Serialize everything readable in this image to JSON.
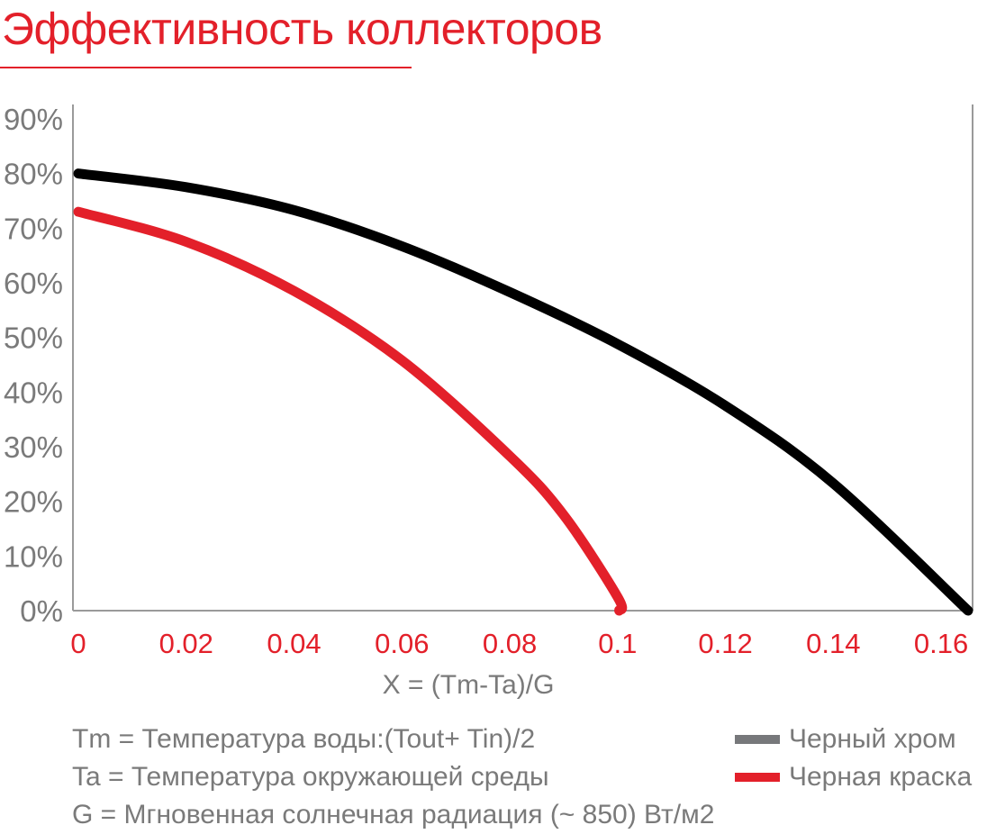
{
  "title": "Эффективность коллекторов",
  "notes": [
    "Tm = Температура воды:(Tout+ Tin)/2",
    "Ta = Температура окружающей среды",
    "G = Мгновенная солнечная радиация (~ 850) Вт/м2"
  ],
  "colors": {
    "accent": "#e3202a",
    "black_line": "#000000",
    "red_line": "#e3202a",
    "legend_gray": "#77787b",
    "axis": "#9a9a9a",
    "text_gray": "#7a7a7a"
  },
  "chart_data": {
    "type": "line",
    "title": "Эффективность коллекторов",
    "xlabel": "X = (Tm-Ta)/G",
    "ylabel": "",
    "xlim": [
      0,
      0.165
    ],
    "ylim": [
      0,
      90
    ],
    "x_ticks": [
      "0",
      "0.02",
      "0.04",
      "0.06",
      "0.08",
      "0.1",
      "0.12",
      "0.14",
      "0.16"
    ],
    "x_tick_values": [
      0,
      0.02,
      0.04,
      0.06,
      0.08,
      0.1,
      0.12,
      0.14,
      0.16
    ],
    "y_ticks": [
      "0%",
      "10%",
      "20%",
      "30%",
      "40%",
      "50%",
      "60%",
      "70%",
      "80%",
      "90%"
    ],
    "y_tick_values": [
      0,
      10,
      20,
      30,
      40,
      50,
      60,
      70,
      80,
      90
    ],
    "legend_position": "bottom-right",
    "grid": false,
    "series": [
      {
        "name": "Черный хром",
        "x": [
          0,
          0.02,
          0.04,
          0.06,
          0.08,
          0.1,
          0.12,
          0.14,
          0.165
        ],
        "y": [
          80,
          77.5,
          73.3,
          66.7,
          58.3,
          48.8,
          37.5,
          23.3,
          0
        ]
      },
      {
        "name": "Черная краска",
        "x": [
          0,
          0.02,
          0.04,
          0.06,
          0.08,
          0.09,
          0.1,
          0.1003
        ],
        "y": [
          73,
          67.5,
          58.5,
          45.8,
          28.3,
          17.5,
          2.5,
          0
        ]
      }
    ]
  }
}
